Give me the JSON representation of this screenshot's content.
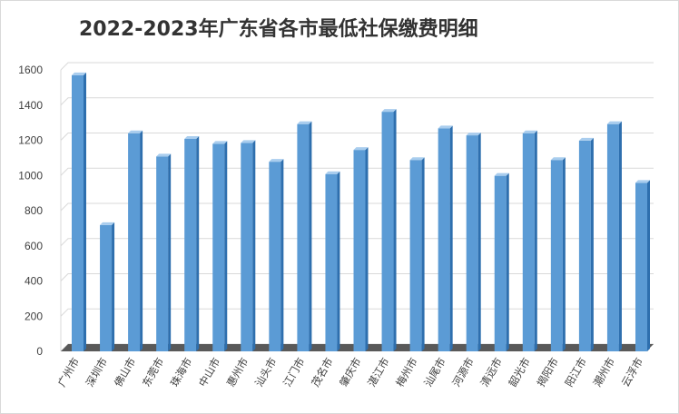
{
  "chart_data": {
    "type": "bar",
    "title": "2022-2023年广东省各市最低社保缴费明细",
    "xlabel": "",
    "ylabel": "",
    "ylim": [
      0,
      1600
    ],
    "yticks": [
      0,
      200,
      400,
      600,
      800,
      1000,
      1200,
      1400,
      1600
    ],
    "grid": true,
    "legend": "none",
    "style": "3d-column",
    "categories": [
      "广州市",
      "深圳市",
      "佛山市",
      "东莞市",
      "珠海市",
      "中山市",
      "惠州市",
      "汕头市",
      "江门市",
      "茂名市",
      "肇庆市",
      "湛江市",
      "梅州市",
      "汕尾市",
      "河源市",
      "清远市",
      "韶光市",
      "揭阳市",
      "阳江市",
      "潮州市",
      "云浮市"
    ],
    "values": [
      1570,
      718,
      1240,
      1108,
      1208,
      1180,
      1185,
      1078,
      1292,
      1008,
      1145,
      1362,
      1088,
      1268,
      1228,
      998,
      1240,
      1088,
      1198,
      1292,
      958
    ],
    "colors": {
      "bar_front": "#5b9bd5",
      "bar_side": "#2e6fae",
      "bar_top": "#a9cdee",
      "grid": "#d9d9d9",
      "floor": "#595959"
    }
  }
}
